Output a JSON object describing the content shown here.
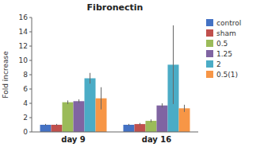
{
  "chart_data": {
    "type": "bar",
    "title": "Fibronectin",
    "ylabel": "Fold increase",
    "categories": [
      "day 9",
      "day 16"
    ],
    "series": [
      {
        "name": "control",
        "color": "#4472c4",
        "values": [
          1.0,
          1.0
        ],
        "errors": [
          0.12,
          0.12
        ]
      },
      {
        "name": "sham",
        "color": "#c0504d",
        "values": [
          1.0,
          1.1
        ],
        "errors": [
          0.12,
          0.15
        ]
      },
      {
        "name": "0.5",
        "color": "#9bbb59",
        "values": [
          4.15,
          1.55
        ],
        "errors": [
          0.25,
          0.2
        ]
      },
      {
        "name": "1.25",
        "color": "#8064a2",
        "values": [
          4.3,
          3.7
        ],
        "errors": [
          0.25,
          0.3
        ]
      },
      {
        "name": "2",
        "color": "#4bacc6",
        "values": [
          7.5,
          9.4
        ],
        "errors": [
          0.75,
          5.5
        ]
      },
      {
        "name": "0.5(1)",
        "color": "#f79646",
        "values": [
          4.7,
          3.3
        ],
        "errors": [
          1.55,
          0.5
        ]
      }
    ],
    "ylim": [
      0,
      16
    ],
    "yticks": [
      0,
      2,
      4,
      6,
      8,
      10,
      12,
      14,
      16
    ],
    "grid": false,
    "legend": "right"
  }
}
